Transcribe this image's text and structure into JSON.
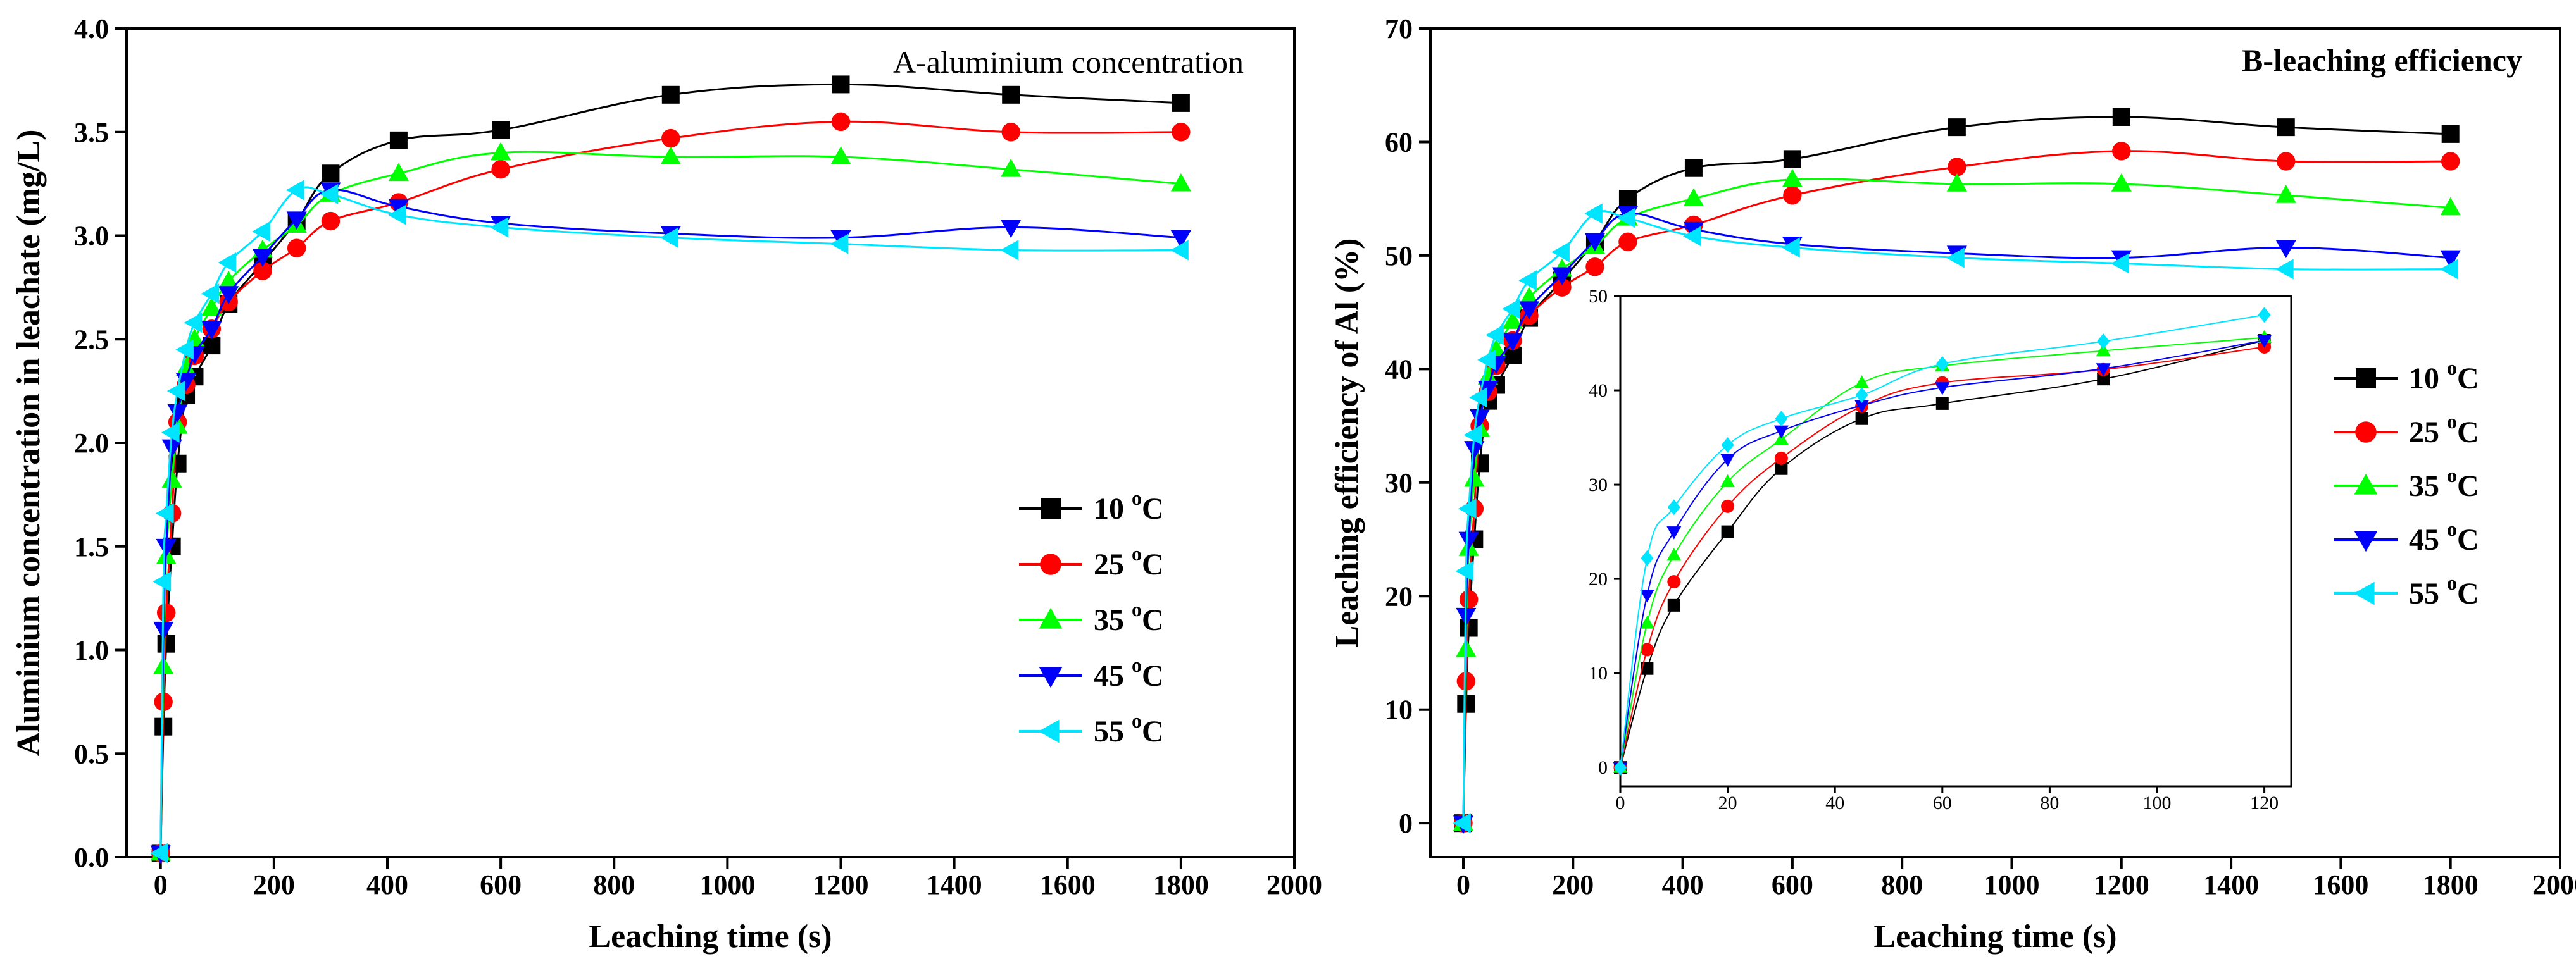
{
  "chart_data": [
    {
      "type": "line",
      "title": "A-aluminium concentration",
      "xlabel": "Leaching time (s)",
      "ylabel": "Aluminium concentration in leachate (mg/L)",
      "xlim": [
        -60,
        2000
      ],
      "ylim": [
        0,
        4.0
      ],
      "xticks": [
        0,
        200,
        400,
        600,
        800,
        1000,
        1200,
        1400,
        1600,
        1800,
        2000
      ],
      "xtick_labels": [
        "0",
        "200",
        "400",
        "600",
        "800",
        "1000",
        "1200",
        "1400",
        "1600",
        "1800",
        "2000"
      ],
      "yticks": [
        0,
        0.5,
        1.0,
        1.5,
        2.0,
        2.5,
        3.0,
        3.5,
        4.0
      ],
      "ytick_labels": [
        "0.0",
        "0.5",
        "1.0",
        "1.5",
        "2.0",
        "2.5",
        "3.0",
        "3.5",
        "4.0"
      ],
      "legend_position": "right-middle",
      "series": [
        {
          "name": "10 °C",
          "color": "#000000",
          "marker": "square",
          "x": [
            0,
            5,
            10,
            20,
            30,
            45,
            60,
            90,
            120,
            180,
            240,
            300,
            420,
            600,
            900,
            1200,
            1500,
            1800
          ],
          "y": [
            0.02,
            0.63,
            1.03,
            1.5,
            1.9,
            2.23,
            2.32,
            2.47,
            2.67,
            2.87,
            3.07,
            3.3,
            3.46,
            3.51,
            3.68,
            3.73,
            3.68,
            3.64
          ]
        },
        {
          "name": "25 °C",
          "color": "#ff0000",
          "marker": "circle",
          "x": [
            0,
            5,
            10,
            20,
            30,
            45,
            60,
            90,
            120,
            180,
            240,
            300,
            420,
            600,
            900,
            1200,
            1500,
            1800
          ],
          "y": [
            0.02,
            0.75,
            1.18,
            1.66,
            2.1,
            2.28,
            2.42,
            2.55,
            2.68,
            2.83,
            2.94,
            3.07,
            3.16,
            3.32,
            3.47,
            3.55,
            3.5,
            3.5
          ]
        },
        {
          "name": "35 °C",
          "color": "#00ff00",
          "marker": "triangle-up",
          "x": [
            0,
            5,
            10,
            20,
            30,
            45,
            60,
            90,
            120,
            180,
            240,
            300,
            420,
            600,
            900,
            1200,
            1500,
            1800
          ],
          "y": [
            0.02,
            0.92,
            1.45,
            1.82,
            2.08,
            2.36,
            2.5,
            2.65,
            2.78,
            2.93,
            3.05,
            3.2,
            3.3,
            3.4,
            3.38,
            3.38,
            3.32,
            3.25
          ]
        },
        {
          "name": "45 °C",
          "color": "#0000ff",
          "marker": "triangle-down",
          "x": [
            0,
            5,
            10,
            20,
            30,
            45,
            60,
            90,
            120,
            180,
            240,
            300,
            420,
            600,
            900,
            1200,
            1500,
            1800
          ],
          "y": [
            0.02,
            1.1,
            1.5,
            1.98,
            2.15,
            2.3,
            2.43,
            2.55,
            2.72,
            2.9,
            3.08,
            3.22,
            3.14,
            3.06,
            3.01,
            2.99,
            3.04,
            2.99
          ]
        },
        {
          "name": "55 °C",
          "color": "#00e5ff",
          "marker": "triangle-left",
          "x": [
            0,
            5,
            10,
            20,
            30,
            45,
            60,
            90,
            120,
            180,
            240,
            300,
            420,
            600,
            900,
            1200,
            1500,
            1800
          ],
          "y": [
            0.02,
            1.33,
            1.66,
            2.05,
            2.25,
            2.45,
            2.58,
            2.72,
            2.87,
            3.02,
            3.22,
            3.2,
            3.1,
            3.04,
            2.99,
            2.96,
            2.93,
            2.93
          ]
        }
      ]
    },
    {
      "type": "line",
      "title": "B-leaching efficiency",
      "xlabel": "Leaching time (s)",
      "ylabel": "Leaching efficiency of Al (%)",
      "xlim": [
        -60,
        2000
      ],
      "ylim": [
        -3,
        70
      ],
      "xticks": [
        0,
        200,
        400,
        600,
        800,
        1000,
        1200,
        1400,
        1600,
        1800,
        2000
      ],
      "xtick_labels": [
        "0",
        "200",
        "400",
        "600",
        "800",
        "1000",
        "1200",
        "1400",
        "1600",
        "1800",
        "2000"
      ],
      "yticks": [
        0,
        10,
        20,
        30,
        40,
        50,
        60,
        70
      ],
      "ytick_labels": [
        "0",
        "10",
        "20",
        "30",
        "40",
        "50",
        "60",
        "70"
      ],
      "legend_position": "right-middle",
      "series": [
        {
          "name": "10 °C",
          "color": "#000000",
          "marker": "square",
          "x": [
            0,
            5,
            10,
            20,
            30,
            45,
            60,
            90,
            120,
            180,
            240,
            300,
            420,
            600,
            900,
            1200,
            1500,
            1800
          ],
          "y": [
            0,
            10.5,
            17.2,
            25.0,
            31.7,
            37.2,
            38.6,
            41.2,
            44.5,
            47.8,
            51.2,
            55.0,
            57.7,
            58.5,
            61.3,
            62.2,
            61.3,
            60.7
          ]
        },
        {
          "name": "25 °C",
          "color": "#ff0000",
          "marker": "circle",
          "x": [
            0,
            5,
            10,
            20,
            30,
            45,
            60,
            90,
            120,
            180,
            240,
            300,
            420,
            600,
            900,
            1200,
            1500,
            1800
          ],
          "y": [
            0,
            12.5,
            19.7,
            27.7,
            35.0,
            38.0,
            40.3,
            42.5,
            44.7,
            47.2,
            49.0,
            51.2,
            52.7,
            55.3,
            57.8,
            59.2,
            58.3,
            58.3
          ]
        },
        {
          "name": "35 °C",
          "color": "#00ff00",
          "marker": "triangle-up",
          "x": [
            0,
            5,
            10,
            20,
            30,
            45,
            60,
            90,
            120,
            180,
            240,
            300,
            420,
            600,
            900,
            1200,
            1500,
            1800
          ],
          "y": [
            0,
            15.3,
            24.2,
            30.3,
            34.7,
            39.3,
            41.7,
            44.2,
            46.3,
            48.8,
            50.8,
            53.3,
            55.0,
            56.7,
            56.3,
            56.3,
            55.3,
            54.2
          ]
        },
        {
          "name": "45 °C",
          "color": "#0000ff",
          "marker": "triangle-down",
          "x": [
            0,
            5,
            10,
            20,
            30,
            45,
            60,
            90,
            120,
            180,
            240,
            300,
            420,
            600,
            900,
            1200,
            1500,
            1800
          ],
          "y": [
            0,
            18.3,
            25.0,
            33.0,
            35.8,
            38.3,
            40.5,
            42.5,
            45.3,
            48.3,
            51.3,
            53.7,
            52.3,
            51.0,
            50.2,
            49.8,
            50.7,
            49.8
          ]
        },
        {
          "name": "55 °C",
          "color": "#00e5ff",
          "marker": "triangle-left",
          "x": [
            0,
            5,
            10,
            20,
            30,
            45,
            60,
            90,
            120,
            180,
            240,
            300,
            420,
            600,
            900,
            1200,
            1500,
            1800
          ],
          "y": [
            0,
            22.2,
            27.7,
            34.2,
            37.5,
            40.8,
            43.0,
            45.3,
            47.8,
            50.3,
            53.7,
            53.3,
            51.7,
            50.7,
            49.8,
            49.3,
            48.8,
            48.8
          ]
        }
      ]
    },
    {
      "type": "line",
      "title": "",
      "xlabel": "",
      "ylabel": "",
      "xlim": [
        0,
        125
      ],
      "ylim": [
        -2,
        50
      ],
      "xticks": [
        0,
        20,
        40,
        60,
        80,
        100,
        120
      ],
      "xtick_labels": [
        "0",
        "20",
        "40",
        "60",
        "80",
        "100",
        "120"
      ],
      "yticks": [
        0,
        10,
        20,
        30,
        40,
        50
      ],
      "ytick_labels": [
        "0",
        "10",
        "20",
        "30",
        "40",
        "50"
      ],
      "series": [
        {
          "name": "",
          "color": "#000000",
          "marker": "square",
          "x": [
            0,
            5,
            10,
            20,
            30,
            45,
            60,
            90,
            120
          ],
          "y": [
            0,
            10.5,
            17.2,
            25.0,
            31.7,
            37.0,
            38.6,
            41.2,
            45.3
          ]
        },
        {
          "name": "",
          "color": "#ff0000",
          "marker": "circle",
          "x": [
            0,
            5,
            10,
            20,
            30,
            45,
            60,
            90,
            120
          ],
          "y": [
            0,
            12.5,
            19.7,
            27.7,
            32.8,
            38.3,
            40.8,
            42.2,
            44.6
          ]
        },
        {
          "name": "",
          "color": "#00ff00",
          "marker": "triangle-up",
          "x": [
            0,
            5,
            10,
            20,
            30,
            45,
            60,
            90,
            120
          ],
          "y": [
            0,
            15.3,
            22.5,
            30.3,
            34.8,
            40.8,
            42.6,
            44.2,
            45.6
          ]
        },
        {
          "name": "",
          "color": "#0000ff",
          "marker": "triangle-down",
          "x": [
            0,
            5,
            10,
            20,
            30,
            45,
            60,
            90,
            120
          ],
          "y": [
            0,
            18.3,
            25.0,
            32.7,
            35.7,
            38.4,
            40.3,
            42.3,
            45.3
          ]
        },
        {
          "name": "",
          "color": "#00e5ff",
          "marker": "diamond",
          "x": [
            0,
            5,
            10,
            20,
            30,
            45,
            60,
            90,
            120
          ],
          "y": [
            0,
            22.2,
            27.6,
            34.2,
            37.0,
            39.5,
            42.8,
            45.2,
            48.0
          ]
        }
      ]
    }
  ]
}
